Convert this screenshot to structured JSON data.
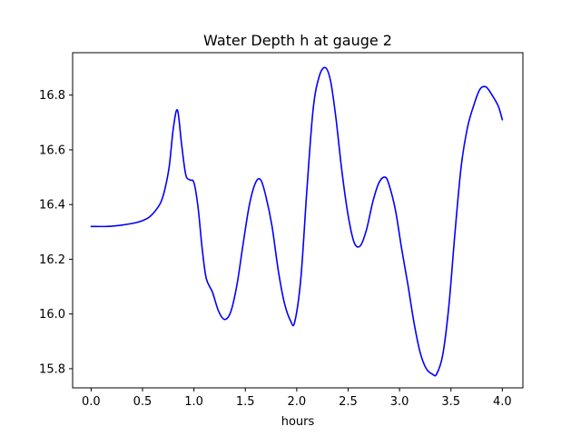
{
  "chart_data": {
    "type": "line",
    "title": "Water Depth h at gauge 2",
    "xlabel": "hours",
    "ylabel": "",
    "xlim": [
      -0.18,
      4.2
    ],
    "ylim": [
      15.73,
      16.955
    ],
    "xticks": [
      0.0,
      0.5,
      1.0,
      1.5,
      2.0,
      2.5,
      3.0,
      3.5,
      4.0
    ],
    "xtick_labels": [
      "0.0",
      "0.5",
      "1.0",
      "1.5",
      "2.0",
      "2.5",
      "3.0",
      "3.5",
      "4.0"
    ],
    "yticks": [
      15.8,
      16.0,
      16.2,
      16.4,
      16.6,
      16.8
    ],
    "ytick_labels": [
      "15.8",
      "16.0",
      "16.2",
      "16.4",
      "16.6",
      "16.8"
    ],
    "grid": false,
    "series": [
      {
        "color": "#0000ff",
        "x": [
          0.0,
          0.15,
          0.3,
          0.45,
          0.55,
          0.62,
          0.68,
          0.72,
          0.76,
          0.8,
          0.84,
          0.88,
          0.92,
          0.96,
          1.0,
          1.04,
          1.08,
          1.12,
          1.18,
          1.24,
          1.3,
          1.36,
          1.42,
          1.48,
          1.54,
          1.6,
          1.65,
          1.7,
          1.76,
          1.82,
          1.88,
          1.94,
          1.98,
          2.04,
          2.1,
          2.16,
          2.22,
          2.28,
          2.33,
          2.38,
          2.44,
          2.5,
          2.56,
          2.62,
          2.68,
          2.74,
          2.8,
          2.86,
          2.9,
          2.96,
          3.02,
          3.08,
          3.14,
          3.2,
          3.26,
          3.32,
          3.36,
          3.42,
          3.48,
          3.54,
          3.6,
          3.66,
          3.72,
          3.78,
          3.84,
          3.9,
          3.96,
          4.0
        ],
        "y": [
          16.32,
          16.32,
          16.325,
          16.335,
          16.35,
          16.375,
          16.41,
          16.46,
          16.54,
          16.68,
          16.745,
          16.62,
          16.51,
          16.49,
          16.48,
          16.39,
          16.24,
          16.13,
          16.08,
          16.01,
          15.98,
          16.01,
          16.11,
          16.26,
          16.4,
          16.48,
          16.49,
          16.43,
          16.32,
          16.16,
          16.04,
          15.975,
          15.97,
          16.13,
          16.46,
          16.75,
          16.87,
          16.9,
          16.85,
          16.72,
          16.52,
          16.36,
          16.26,
          16.25,
          16.31,
          16.41,
          16.48,
          16.5,
          16.47,
          16.38,
          16.24,
          16.11,
          15.97,
          15.86,
          15.8,
          15.78,
          15.78,
          15.85,
          16.03,
          16.3,
          16.54,
          16.68,
          16.76,
          16.82,
          16.83,
          16.8,
          16.76,
          16.71
        ]
      }
    ]
  }
}
